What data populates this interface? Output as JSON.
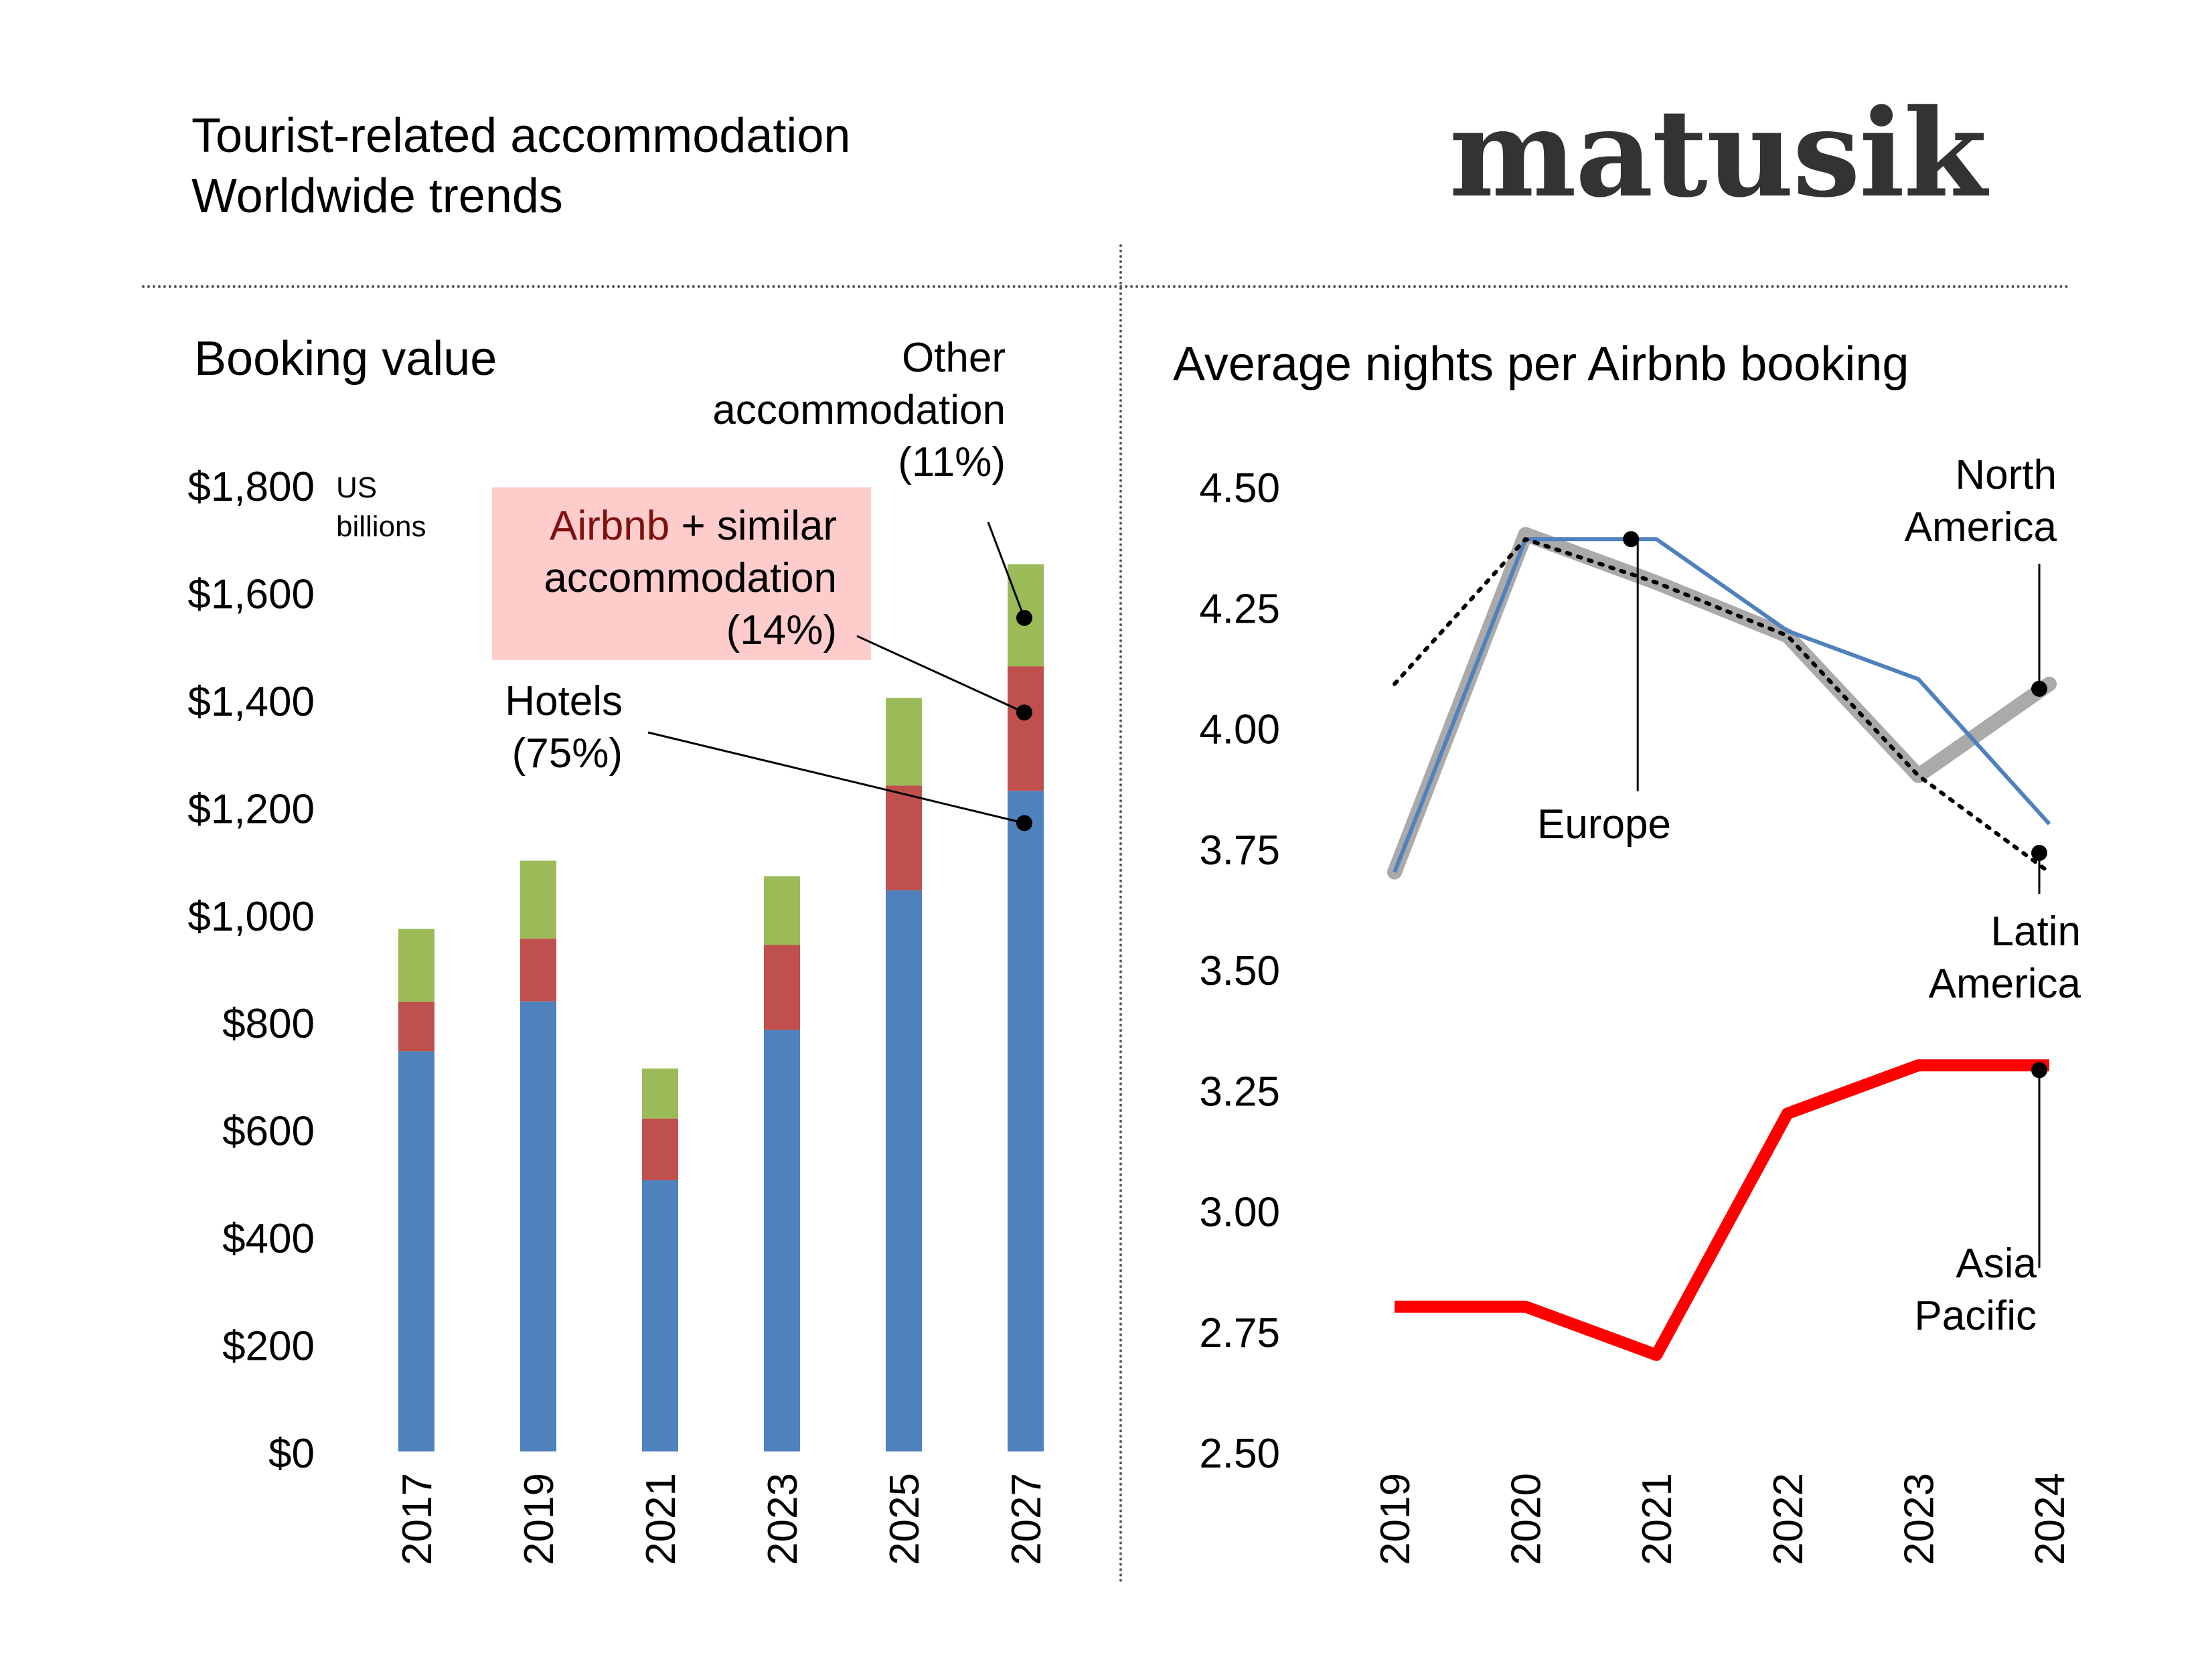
{
  "header": {
    "title": "Tourist-related accommodation",
    "subtitle": "Worldwide trends",
    "logo": "matusik"
  },
  "chart_data": [
    {
      "type": "bar",
      "stacked": true,
      "title": "Booking value",
      "ylabel": "US billions",
      "ylim": [
        0,
        1800
      ],
      "yticks": [
        0,
        200,
        400,
        600,
        800,
        1000,
        1200,
        1400,
        1600,
        1800
      ],
      "ytick_labels": [
        "$0",
        "$200",
        "$400",
        "$600",
        "$800",
        "$1,000",
        "$1,200",
        "$1,400",
        "$1,600",
        "$1,800"
      ],
      "categories": [
        "2017",
        "2019",
        "2021",
        "2023",
        "2025",
        "2027"
      ],
      "series": [
        {
          "name": "Hotels (75%)",
          "color": "#4f81bd",
          "values": [
            745,
            838,
            505,
            785,
            1045,
            1230
          ]
        },
        {
          "name": "Airbnb + similar accommodation (14%)",
          "color": "#c0504d",
          "values": [
            92,
            117,
            115,
            158,
            195,
            232
          ]
        },
        {
          "name": "Other accommodation (11%)",
          "color": "#9bbb59",
          "values": [
            136,
            145,
            93,
            128,
            163,
            190
          ]
        }
      ],
      "annotations": [
        {
          "label": [
            "Other",
            "accommodation",
            "(11%)"
          ]
        },
        {
          "label_bold": "Airbnb",
          "label_rest": "+ similar",
          "label_lines": [
            "accommodation",
            "(14%)"
          ],
          "highlight_color": "#ffcccc"
        },
        {
          "label": [
            "Hotels",
            "(75%)"
          ]
        }
      ],
      "grid": false,
      "legend": "annotations"
    },
    {
      "type": "line",
      "title": "Average nights per Airbnb booking",
      "x": [
        "2019",
        "2020",
        "2021",
        "2022",
        "2023",
        "2024"
      ],
      "ylim": [
        2.5,
        4.5
      ],
      "yticks": [
        "2.50",
        "2.75",
        "3.00",
        "3.25",
        "3.50",
        "3.75",
        "4.00",
        "4.25",
        "4.50"
      ],
      "series": [
        {
          "name": "North America",
          "color": "#aaaaaa",
          "values": [
            3.7,
            4.4,
            4.3,
            4.19,
            3.9,
            4.09
          ]
        },
        {
          "name": "Europe",
          "color": "#4f81bd",
          "values": [
            3.7,
            4.39,
            4.39,
            4.2,
            4.1,
            3.8
          ]
        },
        {
          "name": "Latin America",
          "color": "#000000",
          "values": [
            4.09,
            4.39,
            4.3,
            4.19,
            3.9,
            3.7
          ]
        },
        {
          "name": "Asia Pacific",
          "color": "#ff0000",
          "values": [
            2.8,
            2.8,
            2.7,
            3.2,
            3.3,
            3.3
          ]
        }
      ],
      "labels": {
        "north_america": [
          "North",
          "America"
        ],
        "europe": [
          "Europe"
        ],
        "latin_america": [
          "Latin",
          "America"
        ],
        "asia_pacific": [
          "Asia",
          "Pacific"
        ]
      },
      "grid": false,
      "legend": "annotations"
    }
  ]
}
